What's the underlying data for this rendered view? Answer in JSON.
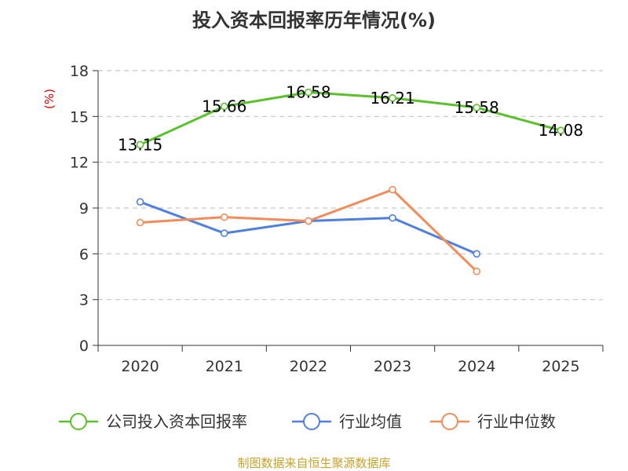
{
  "chart_data": {
    "type": "line",
    "title": "投入资本回报率历年情况(%)",
    "ylabel": "(%)",
    "xlabel": "",
    "categories": [
      "2020",
      "2021",
      "2022",
      "2023",
      "2024",
      "2025"
    ],
    "ylim": [
      0,
      18
    ],
    "yticks": [
      0,
      3,
      6,
      9,
      12,
      15,
      18
    ],
    "grid": true,
    "legend_position": "bottom",
    "series": [
      {
        "name": "公司投入资本回报率",
        "color": "#5ac12d",
        "values": [
          13.15,
          15.66,
          16.58,
          16.21,
          15.58,
          14.08
        ],
        "labels": [
          "13.15",
          "15.66",
          "16.58",
          "16.21",
          "15.58",
          "14.08"
        ]
      },
      {
        "name": "行业均值",
        "color": "#4f7fdf",
        "values": [
          9.4,
          7.35,
          8.15,
          8.35,
          6.0,
          null
        ]
      },
      {
        "name": "行业中位数",
        "color": "#f28c5a",
        "values": [
          8.05,
          8.4,
          8.15,
          10.2,
          4.85,
          null
        ]
      }
    ]
  },
  "source": "制图数据来自恒生聚源数据库"
}
